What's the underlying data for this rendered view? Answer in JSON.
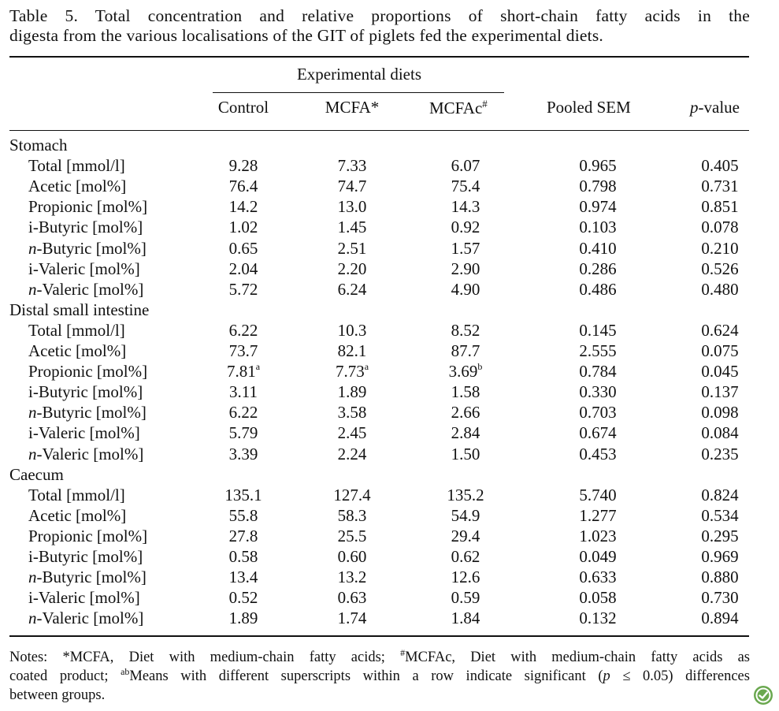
{
  "caption": {
    "line1": "Table 5.  Total concentration and relative proportions of short-chain fatty acids in the",
    "line2": "digesta from the various localisations of the GIT of piglets fed the experimental diets."
  },
  "header": {
    "group": "Experimental diets",
    "col_control": "Control",
    "col_mcfa": "MCFA*",
    "col_mcfac": "MCFAc",
    "col_mcfac_sup": "#",
    "col_sem": "Pooled SEM",
    "col_p_italic": "p",
    "col_p_rest": "-value"
  },
  "sections": [
    {
      "name": "Stomach",
      "rows": [
        {
          "pre": "",
          "label": "Total [mmol/l]",
          "v": [
            "9.28",
            "7.33",
            "6.07",
            "0.965",
            "0.405"
          ]
        },
        {
          "pre": "",
          "label": "Acetic [mol%]",
          "v": [
            "76.4",
            "74.7",
            "75.4",
            "0.798",
            "0.731"
          ]
        },
        {
          "pre": "",
          "label": "Propionic [mol%]",
          "v": [
            "14.2",
            "13.0",
            "14.3",
            "0.974",
            "0.851"
          ]
        },
        {
          "pre": "",
          "label": "i-Butyric [mol%]",
          "v": [
            "1.02",
            "1.45",
            "0.92",
            "0.103",
            "0.078"
          ]
        },
        {
          "pre": "n",
          "label": "-Butyric [mol%]",
          "v": [
            "0.65",
            "2.51",
            "1.57",
            "0.410",
            "0.210"
          ]
        },
        {
          "pre": "",
          "label": "i-Valeric [mol%]",
          "v": [
            "2.04",
            "2.20",
            "2.90",
            "0.286",
            "0.526"
          ]
        },
        {
          "pre": "n",
          "label": "-Valeric [mol%]",
          "v": [
            "5.72",
            "6.24",
            "4.90",
            "0.486",
            "0.480"
          ]
        }
      ]
    },
    {
      "name": "Distal small intestine",
      "rows": [
        {
          "pre": "",
          "label": "Total [mmol/l]",
          "v": [
            "6.22",
            "10.3",
            "8.52",
            "0.145",
            "0.624"
          ]
        },
        {
          "pre": "",
          "label": "Acetic [mol%]",
          "v": [
            "73.7",
            "82.1",
            "87.7",
            "2.555",
            "0.075"
          ]
        },
        {
          "pre": "",
          "label": "Propionic [mol%]",
          "v": [
            "7.81",
            "7.73",
            "3.69",
            "0.784",
            "0.045"
          ],
          "sup": [
            "a",
            "a",
            "b",
            "",
            ""
          ]
        },
        {
          "pre": "",
          "label": "i-Butyric [mol%]",
          "v": [
            "3.11",
            "1.89",
            "1.58",
            "0.330",
            "0.137"
          ]
        },
        {
          "pre": "n",
          "label": "-Butyric [mol%]",
          "v": [
            "6.22",
            "3.58",
            "2.66",
            "0.703",
            "0.098"
          ]
        },
        {
          "pre": "",
          "label": "i-Valeric [mol%]",
          "v": [
            "5.79",
            "2.45",
            "2.84",
            "0.674",
            "0.084"
          ]
        },
        {
          "pre": "n",
          "label": "-Valeric [mol%]",
          "v": [
            "3.39",
            "2.24",
            "1.50",
            "0.453",
            "0.235"
          ]
        }
      ]
    },
    {
      "name": "Caecum",
      "rows": [
        {
          "pre": "",
          "label": "Total [mmol/l]",
          "v": [
            "135.1",
            "127.4",
            "135.2",
            "5.740",
            "0.824"
          ]
        },
        {
          "pre": "",
          "label": "Acetic [mol%]",
          "v": [
            "55.8",
            "58.3",
            "54.9",
            "1.277",
            "0.534"
          ]
        },
        {
          "pre": "",
          "label": "Propionic [mol%]",
          "v": [
            "27.8",
            "25.5",
            "29.4",
            "1.023",
            "0.295"
          ]
        },
        {
          "pre": "",
          "label": "i-Butyric [mol%]",
          "v": [
            "0.58",
            "0.60",
            "0.62",
            "0.049",
            "0.969"
          ]
        },
        {
          "pre": "n",
          "label": "-Butyric [mol%]",
          "v": [
            "13.4",
            "13.2",
            "12.6",
            "0.633",
            "0.880"
          ]
        },
        {
          "pre": "",
          "label": "i-Valeric [mol%]",
          "v": [
            "0.52",
            "0.63",
            "0.59",
            "0.058",
            "0.730"
          ]
        },
        {
          "pre": "n",
          "label": "-Valeric [mol%]",
          "v": [
            "1.89",
            "1.74",
            "1.84",
            "0.132",
            "0.894"
          ]
        }
      ]
    }
  ],
  "notes": {
    "l1a": "Notes: *MCFA, Diet with medium-chain fatty acids; ",
    "l1sup": "#",
    "l1b": "MCFAc, Diet with medium-chain fatty acids as",
    "l2a": "coated product; ",
    "l2sup": "ab",
    "l2b": "Means with different superscripts within a row indicate significant (",
    "l2p": "p",
    "l2c": " ≤ 0.05) differences",
    "l3": "between groups."
  },
  "badge_icon": "leaf-check-icon",
  "colors": {
    "text": "#111111",
    "badge": "#6aa84f"
  }
}
